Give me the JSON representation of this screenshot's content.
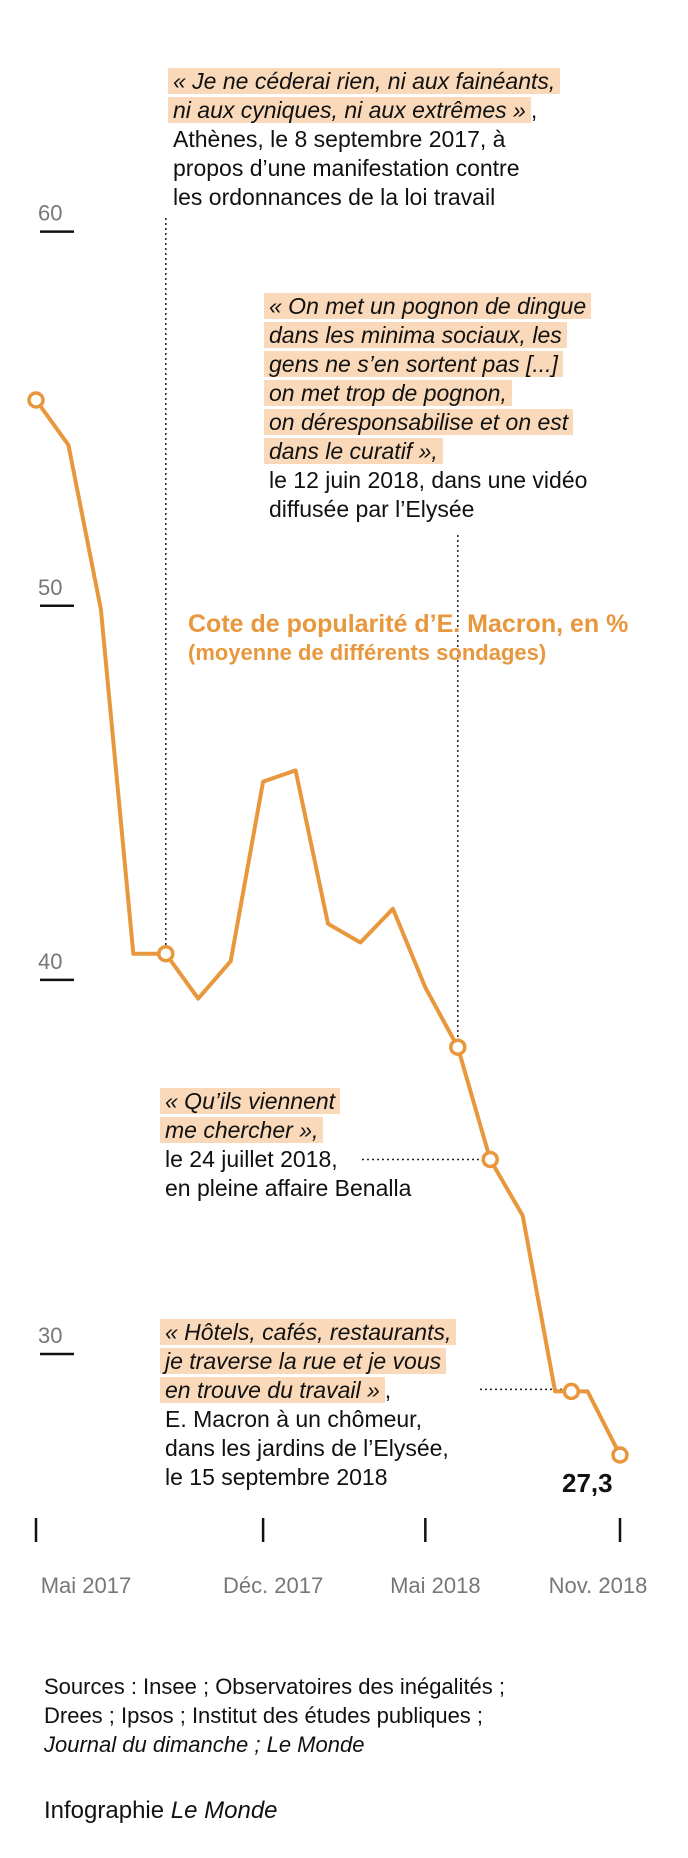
{
  "chart_data": {
    "type": "line",
    "title": "Cote de popularité d’E. Macron, en %",
    "subtitle": "(moyenne de différents sondages)",
    "ylim": [
      25,
      62
    ],
    "yticks": [
      30,
      40,
      50,
      60
    ],
    "ytick_labels": [
      "30",
      "40",
      "50",
      "60"
    ],
    "xlim": [
      0,
      18
    ],
    "xticks": [
      0,
      7,
      12,
      18
    ],
    "xtick_labels": [
      "Mai 2017",
      "Déc. 2017",
      "Mai 2018",
      "Nov. 2018"
    ],
    "series": [
      {
        "name": "Cote de popularité",
        "color": "#e8973d",
        "x": [
          0,
          1,
          2,
          3,
          4,
          5,
          6,
          7,
          8,
          9,
          10,
          11,
          12,
          13,
          14,
          15,
          16,
          17,
          18
        ],
        "values": [
          55.5,
          54.3,
          49.9,
          40.7,
          40.7,
          39.5,
          40.5,
          45.3,
          45.6,
          41.5,
          41.0,
          41.9,
          39.8,
          38.2,
          35.2,
          33.7,
          29.0,
          29.0,
          27.3
        ]
      }
    ],
    "markers": [
      {
        "x": 0,
        "y": 55.5
      },
      {
        "x": 4,
        "y": 40.7
      },
      {
        "x": 13,
        "y": 38.2
      },
      {
        "x": 14,
        "y": 35.2
      },
      {
        "x": 16.5,
        "y": 29.0
      },
      {
        "x": 18,
        "y": 27.3
      }
    ],
    "last_value_label": "27,3",
    "annotations": [
      {
        "quote": [
          "« Je ne céderai rien, ni aux fainéants,",
          "ni aux cyniques, ni aux extrêmes »"
        ],
        "quote_tail": ",",
        "context": [
          "Athènes, le 8 septembre 2017, à",
          "propos d’une manifestation contre",
          "les ordonnances de la loi travail"
        ],
        "x": 4,
        "y": 40.7,
        "leader": "vertical"
      },
      {
        "quote": [
          "« On met un pognon de dingue",
          "dans les minima sociaux, les",
          "gens ne s’en sortent pas [...]",
          "on met trop de pognon,",
          "on déresponsabilise et on est",
          "dans le curatif »,"
        ],
        "quote_tail": "",
        "context": [
          "le 12 juin 2018, dans une vidéo",
          "diffusée par l’Elysée"
        ],
        "x": 13,
        "y": 38.2,
        "leader": "vertical"
      },
      {
        "quote": [
          "« Qu’ils viennent",
          "me chercher »,"
        ],
        "quote_tail": "",
        "context": [
          "le 24 juillet 2018,",
          "en pleine affaire Benalla"
        ],
        "x": 14,
        "y": 35.2,
        "leader": "horizontal"
      },
      {
        "quote": [
          "« Hôtels, cafés, restaurants,",
          "je traverse la rue et je vous",
          "en trouve du travail »"
        ],
        "quote_tail": ",",
        "context": [
          "E. Macron à un chômeur,",
          "dans les jardins de l’Elysée,",
          "le 15 septembre 2018"
        ],
        "x": 16.5,
        "y": 29.0,
        "leader": "horizontal"
      }
    ]
  },
  "sources": {
    "line1": "Sources : Insee ; Observatoires des inégalités ;",
    "line2": "Drees ; Ipsos ; Institut des études publiques ;",
    "line3": "Journal du dimanche ;  Le Monde"
  },
  "credit": {
    "prefix": "Infographie ",
    "brand": "Le Monde"
  }
}
